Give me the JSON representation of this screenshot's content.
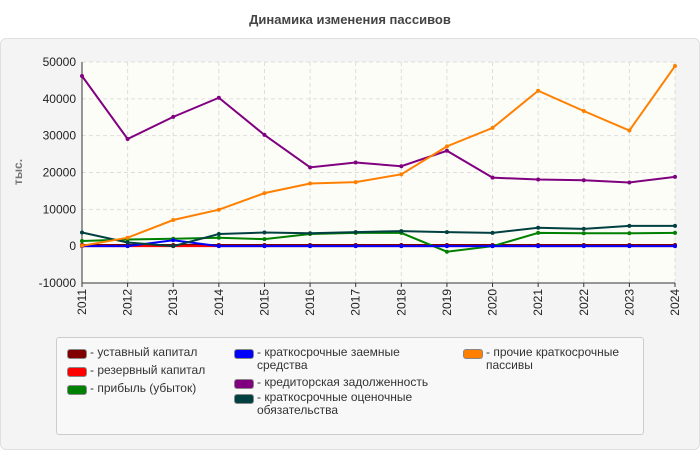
{
  "chart_data": {
    "type": "line",
    "title": "Динамика изменения пассивов",
    "ylabel": "тыс.",
    "xlabel": "",
    "ylim": [
      -10000,
      50000
    ],
    "yticks": [
      -10000,
      0,
      10000,
      20000,
      30000,
      40000,
      50000
    ],
    "grid": true,
    "legend_position": "bottom",
    "x": [
      "2011",
      "2012",
      "2013",
      "2014",
      "2015",
      "2016",
      "2017",
      "2018",
      "2019",
      "2020",
      "2021",
      "2022",
      "2023",
      "2024"
    ],
    "series": [
      {
        "name": "уставный капитал",
        "color": "#800000",
        "values": [
          300,
          300,
          300,
          300,
          300,
          300,
          300,
          300,
          300,
          300,
          300,
          300,
          300,
          300
        ]
      },
      {
        "name": "резервный капитал",
        "color": "#ff0000",
        "values": [
          0,
          0,
          0,
          0,
          0,
          0,
          0,
          0,
          0,
          0,
          0,
          0,
          0,
          0
        ]
      },
      {
        "name": "прибыль (убыток)",
        "color": "#008000",
        "values": [
          1400,
          1800,
          2000,
          2300,
          1900,
          3300,
          3600,
          3600,
          -1500,
          0,
          3600,
          3500,
          3500,
          3600
        ]
      },
      {
        "name": "краткосрочные заемные средства",
        "color": "#0000ff",
        "values": [
          0,
          0,
          1600,
          0,
          0,
          0,
          0,
          0,
          0,
          0,
          0,
          0,
          0,
          0
        ]
      },
      {
        "name": "кредиторская задолженность",
        "color": "#800080",
        "values": [
          46200,
          29100,
          35100,
          40300,
          30200,
          21400,
          22700,
          21700,
          25900,
          18600,
          18100,
          17900,
          17300,
          18800
        ]
      },
      {
        "name": "краткосрочные оценочные обязательства",
        "color": "#004040",
        "values": [
          3700,
          1000,
          0,
          3300,
          3700,
          3500,
          3800,
          4100,
          3800,
          3600,
          5000,
          4700,
          5500,
          5500
        ]
      },
      {
        "name": "прочие краткосрочные пассивы",
        "color": "#ff8000",
        "values": [
          100,
          2300,
          7100,
          9900,
          14400,
          17000,
          17400,
          19500,
          27100,
          32100,
          42200,
          36700,
          31400,
          48900
        ]
      }
    ]
  }
}
